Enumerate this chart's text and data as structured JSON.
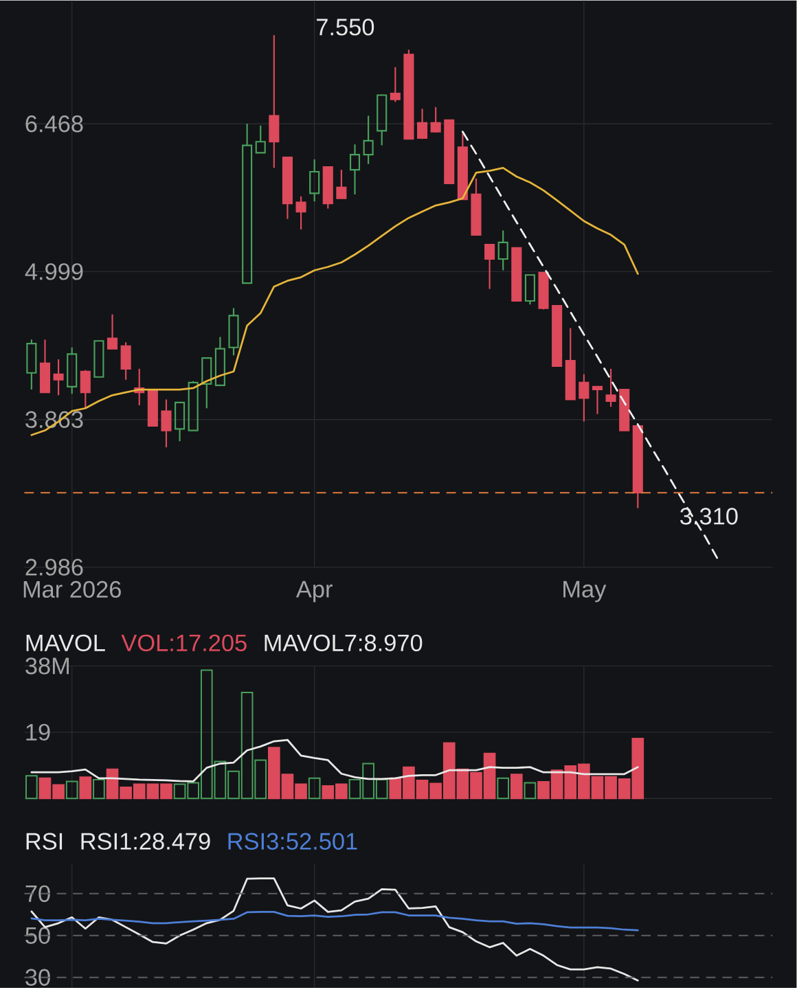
{
  "chart_data": [
    {
      "type": "candlestick",
      "categories": [
        null,
        null,
        null,
        "Mar 2026",
        null,
        null,
        null,
        null,
        null,
        null,
        null,
        null,
        null,
        null,
        null,
        null,
        null,
        null,
        null,
        null,
        null,
        "Apr",
        null,
        null,
        null,
        null,
        null,
        null,
        null,
        null,
        null,
        null,
        null,
        null,
        null,
        null,
        null,
        null,
        null,
        null,
        null,
        "May",
        null,
        null,
        null,
        null,
        null,
        null,
        null,
        null,
        null,
        null
      ],
      "ohlc": [
        [
          4.19,
          4.44,
          4.07,
          4.41
        ],
        [
          4.26,
          4.44,
          4.05,
          4.05
        ],
        [
          4.18,
          4.29,
          4.03,
          4.14
        ],
        [
          4.09,
          4.38,
          4.04,
          4.33
        ],
        [
          4.2,
          4.21,
          3.94,
          4.05
        ],
        [
          4.16,
          4.43,
          4.16,
          4.43
        ],
        [
          4.45,
          4.64,
          4.37,
          4.37
        ],
        [
          4.39,
          4.42,
          4.14,
          4.22
        ],
        [
          4.08,
          4.22,
          3.96,
          4.05
        ],
        [
          4.06,
          4.06,
          3.82,
          3.82
        ],
        [
          3.92,
          4.0,
          3.68,
          3.79
        ],
        [
          3.8,
          3.98,
          3.72,
          3.98
        ],
        [
          3.79,
          4.13,
          3.79,
          4.12
        ],
        [
          4.11,
          4.3,
          3.94,
          4.3
        ],
        [
          4.1,
          4.46,
          4.1,
          4.37
        ],
        [
          4.38,
          4.69,
          4.32,
          4.63
        ],
        [
          4.9,
          6.47,
          4.9,
          6.23
        ],
        [
          6.15,
          6.45,
          6.15,
          6.27
        ],
        [
          6.56,
          7.55,
          5.99,
          6.27
        ],
        [
          6.1,
          6.1,
          5.48,
          5.63
        ],
        [
          5.64,
          5.7,
          5.38,
          5.55
        ],
        [
          5.73,
          6.08,
          5.65,
          5.95
        ],
        [
          6.0,
          6.0,
          5.58,
          5.63
        ],
        [
          5.79,
          5.97,
          5.68,
          5.68
        ],
        [
          5.97,
          6.24,
          5.72,
          6.13
        ],
        [
          6.13,
          6.56,
          6.03,
          6.28
        ],
        [
          6.39,
          6.81,
          6.23,
          6.8
        ],
        [
          6.82,
          7.14,
          6.72,
          6.75
        ],
        [
          7.3,
          7.36,
          6.3,
          6.3
        ],
        [
          6.48,
          6.64,
          6.3,
          6.31
        ],
        [
          6.48,
          6.66,
          6.37,
          6.38
        ],
        [
          6.51,
          6.51,
          5.83,
          5.83
        ],
        [
          6.21,
          6.36,
          5.67,
          5.67
        ],
        [
          5.72,
          5.88,
          5.33,
          5.33
        ],
        [
          5.24,
          5.24,
          4.85,
          5.11
        ],
        [
          5.11,
          5.37,
          5.01,
          5.26
        ],
        [
          5.21,
          5.21,
          4.75,
          4.75
        ],
        [
          4.75,
          4.97,
          4.72,
          4.97
        ],
        [
          4.99,
          4.99,
          4.68,
          4.69
        ],
        [
          4.71,
          4.71,
          4.24,
          4.24
        ],
        [
          4.28,
          4.53,
          4.0,
          4.0
        ],
        [
          4.12,
          4.18,
          3.85,
          4.01
        ],
        [
          4.09,
          4.09,
          3.9,
          4.07
        ],
        [
          4.03,
          4.22,
          3.95,
          3.99
        ],
        [
          4.07,
          4.07,
          3.79,
          3.79
        ],
        [
          3.82,
          3.82,
          3.31,
          3.4
        ],
        null,
        null,
        null,
        null,
        null,
        null
      ],
      "colors": [
        "#49a05c",
        "#dc4a5c",
        "#dc4a5c",
        "#49a05c",
        "#dc4a5c",
        "#49a05c",
        "#dc4a5c",
        "#dc4a5c",
        "#dc4a5c",
        "#dc4a5c",
        "#dc4a5c",
        "#49a05c",
        "#49a05c",
        "#49a05c",
        "#49a05c",
        "#49a05c",
        "#49a05c",
        "#49a05c",
        "#dc4a5c",
        "#dc4a5c",
        "#dc4a5c",
        "#49a05c",
        "#dc4a5c",
        "#dc4a5c",
        "#49a05c",
        "#49a05c",
        "#49a05c",
        "#dc4a5c",
        "#dc4a5c",
        "#dc4a5c",
        "#dc4a5c",
        "#dc4a5c",
        "#dc4a5c",
        "#dc4a5c",
        "#dc4a5c",
        "#49a05c",
        "#dc4a5c",
        "#49a05c",
        "#dc4a5c",
        "#dc4a5c",
        "#dc4a5c",
        "#dc4a5c",
        "#dc4a5c",
        "#dc4a5c",
        "#dc4a5c",
        "#dc4a5c",
        null,
        null,
        null,
        null,
        null,
        null
      ],
      "series": [
        {
          "type": "line",
          "color": "#e5b53b",
          "values": [
            3.76,
            3.79,
            3.85,
            3.92,
            3.94,
            3.99,
            4.03,
            4.05,
            4.07,
            4.07,
            4.07,
            4.07,
            4.08,
            4.13,
            4.17,
            4.2,
            4.55,
            4.65,
            4.87,
            4.92,
            4.95,
            5.01,
            5.04,
            5.08,
            5.15,
            5.23,
            5.32,
            5.41,
            5.49,
            5.55,
            5.61,
            5.64,
            5.68,
            5.94,
            5.96,
            5.99,
            5.9,
            5.84,
            5.76,
            5.66,
            5.56,
            5.46,
            5.39,
            5.33,
            5.24,
            4.98,
            null,
            null,
            null,
            null,
            null,
            null
          ]
        },
        {
          "type": "line",
          "color": "#f0f0f0",
          "line_style": "dashed",
          "values": [
            null,
            null,
            null,
            null,
            null,
            null,
            null,
            null,
            null,
            null,
            null,
            null,
            null,
            null,
            null,
            null,
            null,
            null,
            null,
            null,
            null,
            null,
            null,
            null,
            null,
            null,
            null,
            null,
            null,
            null,
            null,
            null,
            6.38,
            6.14,
            5.9,
            5.67,
            5.45,
            5.24,
            5.04,
            4.85,
            4.66,
            4.48,
            4.31,
            4.14,
            3.98,
            3.83,
            3.68,
            3.54,
            3.4,
            3.27,
            3.15,
            3.02
          ]
        }
      ],
      "ylim": [
        2.986,
        8.02
      ],
      "yticks": [
        2.986,
        3.863,
        4.999,
        6.468
      ],
      "log": true,
      "grid": true,
      "ref_lines": [
        {
          "axis": "y",
          "value": 3.4,
          "color": "#e07b3c",
          "line_style": "dashed"
        }
      ],
      "annotations": [
        "7.550",
        "3.310"
      ]
    },
    {
      "type": "bar",
      "title": "MAVOL",
      "categories": [
        null,
        null,
        null,
        null,
        null,
        null,
        null,
        null,
        null,
        null,
        null,
        null,
        null,
        null,
        null,
        null,
        null,
        null,
        null,
        null,
        null,
        null,
        null,
        null,
        null,
        null,
        null,
        null,
        null,
        null,
        null,
        null,
        null,
        null,
        null,
        null,
        null,
        null,
        null,
        null,
        null,
        null,
        null,
        null,
        null,
        null,
        null,
        null,
        null,
        null,
        null,
        null
      ],
      "series": [
        {
          "name": "VOL:17.205",
          "color": "#dc4a5c",
          "colors": [
            "#49a05c",
            "#dc4a5c",
            "#dc4a5c",
            "#49a05c",
            "#dc4a5c",
            "#49a05c",
            "#dc4a5c",
            "#dc4a5c",
            "#dc4a5c",
            "#dc4a5c",
            "#dc4a5c",
            "#49a05c",
            "#49a05c",
            "#49a05c",
            "#49a05c",
            "#49a05c",
            "#49a05c",
            "#49a05c",
            "#dc4a5c",
            "#dc4a5c",
            "#dc4a5c",
            "#49a05c",
            "#dc4a5c",
            "#dc4a5c",
            "#49a05c",
            "#49a05c",
            "#49a05c",
            "#dc4a5c",
            "#dc4a5c",
            "#dc4a5c",
            "#dc4a5c",
            "#dc4a5c",
            "#dc4a5c",
            "#dc4a5c",
            "#dc4a5c",
            "#49a05c",
            "#dc4a5c",
            "#49a05c",
            "#dc4a5c",
            "#dc4a5c",
            "#dc4a5c",
            "#dc4a5c",
            "#dc4a5c",
            "#dc4a5c",
            "#dc4a5c",
            "#dc4a5c",
            null,
            null,
            null,
            null,
            null,
            null
          ],
          "values": [
            6.5,
            5.8,
            3.9,
            4.9,
            6.1,
            5.4,
            8.4,
            3.2,
            4.1,
            4.1,
            4.1,
            4.1,
            4.5,
            36.8,
            10.6,
            7.8,
            30.4,
            11.0,
            14.6,
            6.9,
            4.1,
            5.8,
            3.6,
            4.1,
            5.4,
            10.0,
            5.4,
            5.8,
            9.0,
            5.2,
            4.3,
            15.9,
            8.4,
            7.4,
            12.9,
            5.8,
            6.9,
            4.5,
            4.8,
            8.1,
            9.3,
            9.8,
            6.2,
            6.2,
            5.6,
            17.2,
            null,
            null,
            null,
            null,
            null,
            null
          ]
        },
        {
          "name": "MAVOL7:8.970",
          "type": "line",
          "color": "#e8e8e8",
          "values": [
            7.5,
            7.5,
            7.5,
            7.8,
            8.3,
            5.8,
            5.8,
            5.6,
            5.4,
            5.3,
            5.2,
            5.0,
            4.9,
            8.8,
            10.0,
            10.3,
            13.8,
            14.9,
            16.4,
            16.8,
            12.3,
            11.6,
            11.0,
            7.1,
            6.1,
            5.6,
            5.6,
            5.8,
            6.5,
            6.7,
            6.7,
            8.1,
            8.1,
            8.1,
            9.0,
            8.8,
            8.8,
            9.0,
            7.5,
            7.5,
            7.5,
            7.0,
            7.0,
            7.0,
            7.0,
            9.0,
            null,
            null,
            null,
            null,
            null,
            null
          ]
        }
      ],
      "ylim": [
        0,
        38
      ],
      "yticks": [
        {
          "value": 0,
          "label": null
        },
        19,
        {
          "value": 38,
          "label": "38M"
        }
      ],
      "grid": true,
      "legend": "top left",
      "tick_labels": "y"
    },
    {
      "type": "line",
      "title": "RSI",
      "categories": [
        null,
        null,
        null,
        null,
        null,
        null,
        null,
        null,
        null,
        null,
        null,
        null,
        null,
        null,
        null,
        null,
        null,
        null,
        null,
        null,
        null,
        null,
        null,
        null,
        null,
        null,
        null,
        null,
        null,
        null,
        null,
        null,
        null,
        null,
        null,
        null,
        null,
        null,
        null,
        null,
        null,
        null,
        null,
        null,
        null,
        null,
        null,
        null,
        null,
        null,
        null,
        null
      ],
      "series": [
        {
          "name": "RSI1:28.479",
          "color": "#e8e8e8",
          "values": [
            61.5,
            54.0,
            55.9,
            58.7,
            53.3,
            58.7,
            57.5,
            54.0,
            50.5,
            46.9,
            46.2,
            50.0,
            52.8,
            55.9,
            57.5,
            61.8,
            77.1,
            77.3,
            77.3,
            64.4,
            62.9,
            66.7,
            61.3,
            62.0,
            66.2,
            67.6,
            72.1,
            71.9,
            62.9,
            63.2,
            63.9,
            54.0,
            51.6,
            47.2,
            44.4,
            46.5,
            40.4,
            43.6,
            40.4,
            35.9,
            33.8,
            33.8,
            34.9,
            34.2,
            31.6,
            28.5,
            null,
            null,
            null,
            null,
            null,
            null
          ]
        },
        {
          "name": "RSI3:52.501",
          "color": "#4d7fd8",
          "values": [
            58.2,
            57.3,
            57.3,
            57.5,
            57.3,
            58.0,
            57.5,
            57.1,
            56.6,
            55.9,
            55.9,
            56.4,
            56.8,
            57.1,
            57.5,
            58.0,
            61.1,
            61.3,
            61.3,
            59.4,
            59.2,
            59.6,
            58.9,
            59.2,
            59.9,
            60.1,
            61.1,
            61.1,
            59.6,
            59.6,
            59.6,
            58.5,
            58.0,
            57.3,
            56.8,
            56.8,
            55.6,
            55.9,
            55.4,
            54.5,
            53.8,
            53.8,
            53.8,
            53.5,
            52.8,
            52.5,
            null,
            null,
            null,
            null,
            null,
            null
          ]
        }
      ],
      "ylim": [
        25,
        84
      ],
      "yticks": [
        30,
        50,
        70
      ],
      "grid": "x",
      "ref_lines": [
        {
          "axis": "y",
          "value": 70,
          "color": "#5e5e62",
          "line_style": "dashed"
        },
        {
          "axis": "y",
          "value": 50,
          "color": "#5e5e62",
          "line_style": "dashed"
        },
        {
          "axis": "y",
          "value": 30,
          "color": "#5e5e62",
          "line_style": "dashed"
        }
      ],
      "legend": "top left",
      "tick_labels": "y"
    }
  ]
}
